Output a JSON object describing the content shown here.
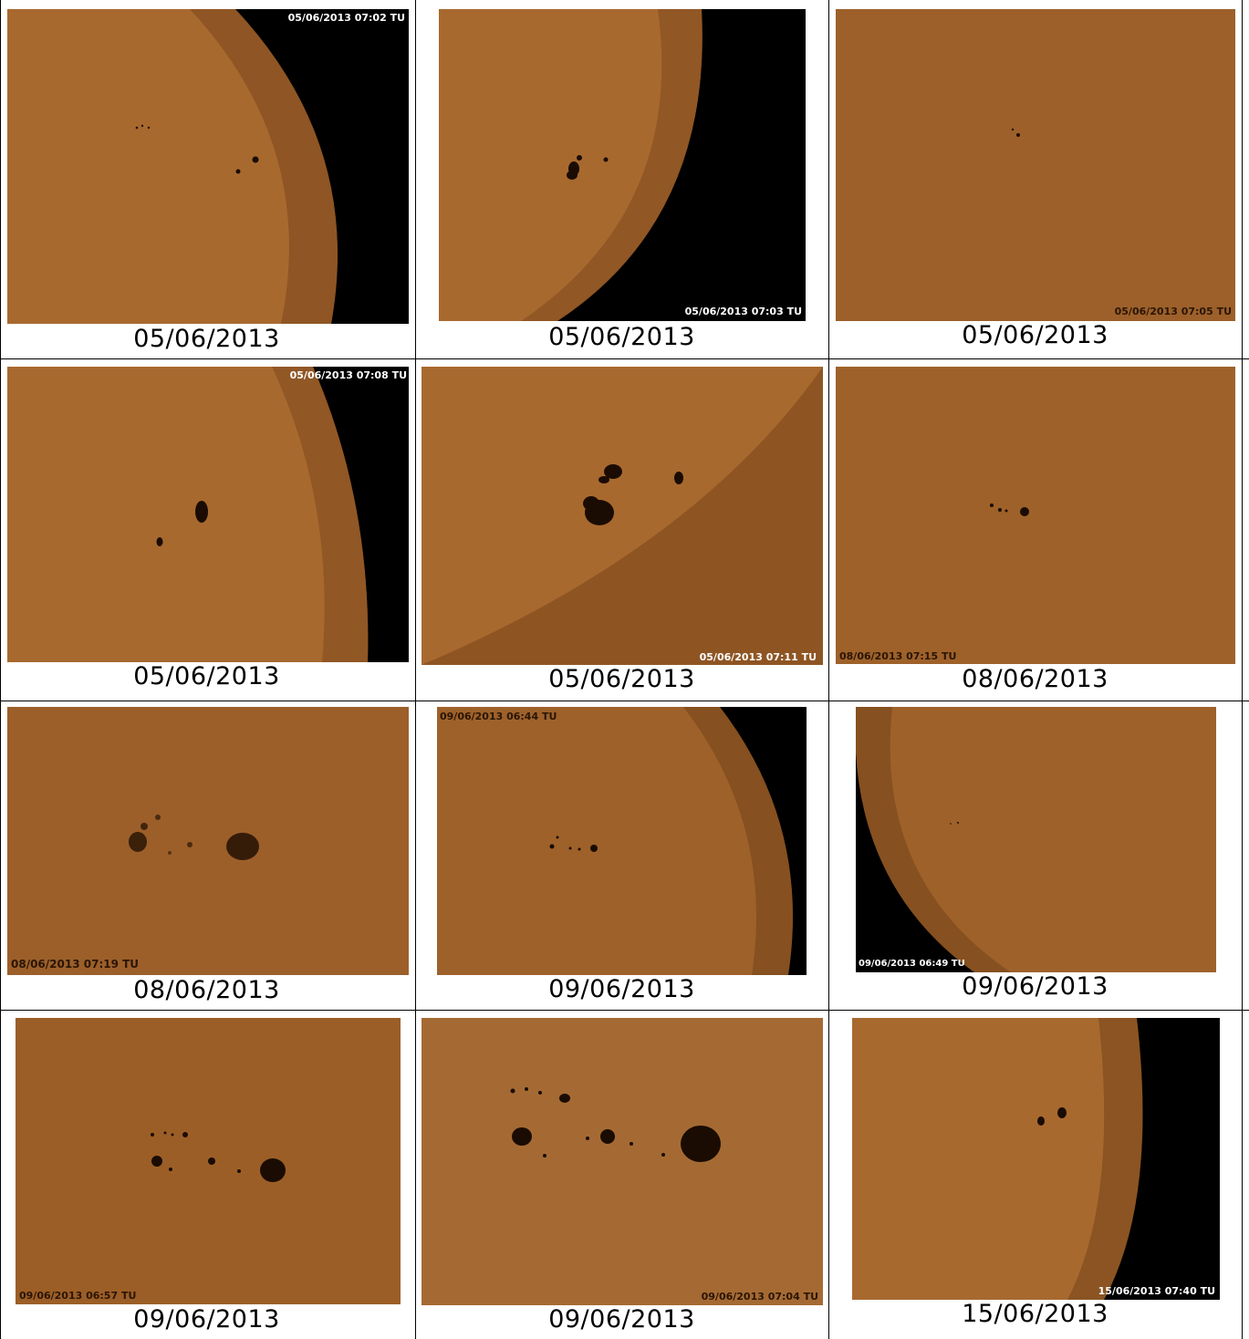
{
  "colors": {
    "photosphere": "#a8692f",
    "photosphere_dark": "#6e3f16",
    "sky": "#000000",
    "grid_line": "#000000",
    "caption_text": "#000000"
  },
  "cells": [
    {
      "stamp": "05/06/2013 07:02 TU",
      "stamp_color": "#ffffff",
      "caption": "05/06/2013"
    },
    {
      "stamp": "05/06/2013 07:03 TU",
      "stamp_color": "#ffffff",
      "caption": "05/06/2013"
    },
    {
      "stamp": "05/06/2013 07:05 TU",
      "stamp_color": "#2a1505",
      "caption": "05/06/2013"
    },
    {
      "stamp": "05/06/2013 07:08 TU",
      "stamp_color": "#ffffff",
      "caption": "05/06/2013"
    },
    {
      "stamp": "05/06/2013 07:11 TU",
      "stamp_color": "#ffffff",
      "caption": "05/06/2013"
    },
    {
      "stamp": "08/06/2013 07:15 TU",
      "stamp_color": "#2a1505",
      "caption": "08/06/2013"
    },
    {
      "stamp": "08/06/2013 07:19 TU",
      "stamp_color": "#2a1505",
      "caption": "08/06/2013"
    },
    {
      "stamp": "09/06/2013 06:44 TU",
      "stamp_color": "#2a1505",
      "caption": "09/06/2013"
    },
    {
      "stamp": "09/06/2013 06:49 TU",
      "stamp_color": "#ffffff",
      "caption": "09/06/2013"
    },
    {
      "stamp": "09/06/2013 06:57 TU",
      "stamp_color": "#2a1505",
      "caption": "09/06/2013"
    },
    {
      "stamp": "09/06/2013 07:04 TU",
      "stamp_color": "#2a1505",
      "caption": "09/06/2013"
    },
    {
      "stamp": "15/06/2013 07:40 TU",
      "stamp_color": "#ffffff",
      "caption": "15/06/2013"
    }
  ]
}
